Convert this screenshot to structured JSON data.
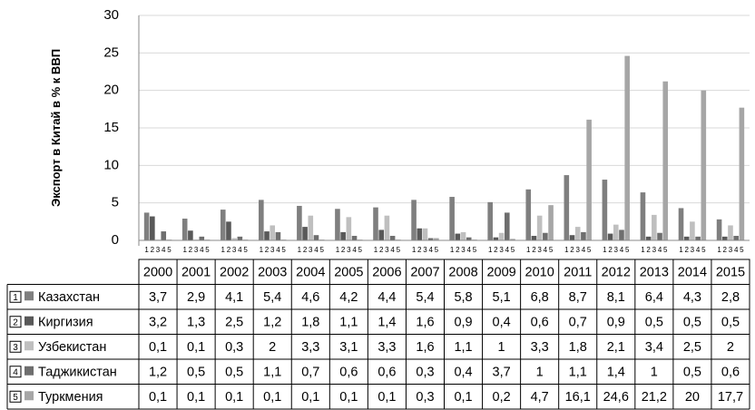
{
  "chart_data": {
    "type": "bar",
    "ylabel": "Экспорт в Китай в % к ВВП",
    "ylim": [
      0,
      30
    ],
    "yticks": [
      "0",
      "5",
      "10",
      "15",
      "20",
      "25",
      "30"
    ],
    "grid": true,
    "subcategory_labels": [
      "1",
      "2",
      "3",
      "4",
      "5"
    ],
    "categories": [
      "2000",
      "2001",
      "2002",
      "2003",
      "2004",
      "2005",
      "2006",
      "2007",
      "2008",
      "2009",
      "2010",
      "2011",
      "2012",
      "2013",
      "2014",
      "2015"
    ],
    "series": [
      {
        "num": "1",
        "name": "Казахстан",
        "color": "#7f7f7f",
        "values": [
          3.7,
          2.9,
          4.1,
          5.4,
          4.6,
          4.2,
          4.4,
          5.4,
          5.8,
          5.1,
          6.8,
          8.7,
          8.1,
          6.4,
          4.3,
          2.8
        ],
        "labels": [
          "3,7",
          "2,9",
          "4,1",
          "5,4",
          "4,6",
          "4,2",
          "4,4",
          "5,4",
          "5,8",
          "5,1",
          "6,8",
          "8,7",
          "8,1",
          "6,4",
          "4,3",
          "2,8"
        ]
      },
      {
        "num": "2",
        "name": "Киргизия",
        "color": "#595959",
        "values": [
          3.2,
          1.3,
          2.5,
          1.2,
          1.8,
          1.1,
          1.4,
          1.6,
          0.9,
          0.4,
          0.6,
          0.7,
          0.9,
          0.5,
          0.5,
          0.5
        ],
        "labels": [
          "3,2",
          "1,3",
          "2,5",
          "1,2",
          "1,8",
          "1,1",
          "1,4",
          "1,6",
          "0,9",
          "0,4",
          "0,6",
          "0,7",
          "0,9",
          "0,5",
          "0,5",
          "0,5"
        ]
      },
      {
        "num": "3",
        "name": "Узбекистан",
        "color": "#bfbfbf",
        "values": [
          0.1,
          0.1,
          0.3,
          2,
          3.3,
          3.1,
          3.3,
          1.6,
          1.1,
          1,
          3.3,
          1.8,
          2.1,
          3.4,
          2.5,
          2
        ],
        "labels": [
          "0,1",
          "0,1",
          "0,3",
          "2",
          "3,3",
          "3,1",
          "3,3",
          "1,6",
          "1,1",
          "1",
          "3,3",
          "1,8",
          "2,1",
          "3,4",
          "2,5",
          "2"
        ]
      },
      {
        "num": "4",
        "name": "Таджикистан",
        "color": "#6e6e6e",
        "values": [
          1.2,
          0.5,
          0.5,
          1.1,
          0.7,
          0.6,
          0.6,
          0.3,
          0.4,
          3.7,
          1,
          1.1,
          1.4,
          1,
          0.5,
          0.6
        ],
        "labels": [
          "1,2",
          "0,5",
          "0,5",
          "1,1",
          "0,7",
          "0,6",
          "0,6",
          "0,3",
          "0,4",
          "3,7",
          "1",
          "1,1",
          "1,4",
          "1",
          "0,5",
          "0,6"
        ]
      },
      {
        "num": "5",
        "name": "Туркмения",
        "color": "#a6a6a6",
        "values": [
          0.1,
          0.1,
          0.1,
          0.1,
          0.1,
          0.1,
          0.1,
          0.3,
          0.1,
          0.2,
          4.7,
          16.1,
          24.6,
          21.2,
          20,
          17.7
        ],
        "labels": [
          "0,1",
          "0,1",
          "0,1",
          "0,1",
          "0,1",
          "0,1",
          "0,1",
          "0,3",
          "0,1",
          "0,2",
          "4,7",
          "16,1",
          "24,6",
          "21,2",
          "20",
          "17,7"
        ]
      }
    ]
  }
}
